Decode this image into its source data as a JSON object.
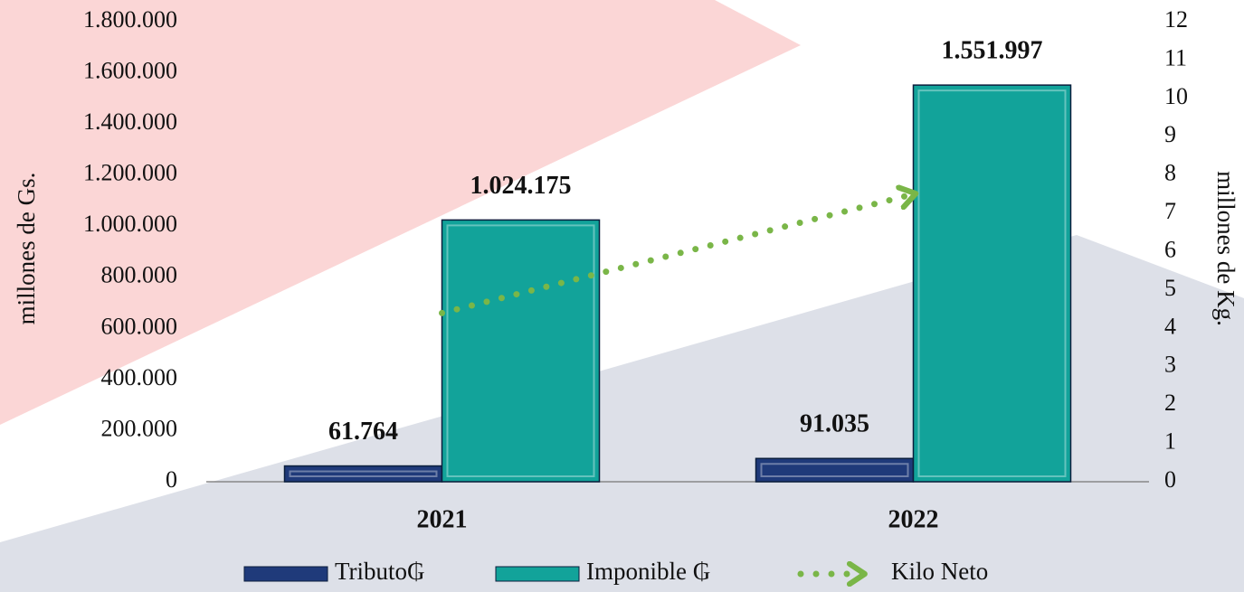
{
  "chart_data": {
    "type": "bar",
    "categories": [
      "2021",
      "2022"
    ],
    "y_label": "millones de Gs.",
    "y2_label": "millones de Kg.",
    "ylim": [
      0,
      1800000
    ],
    "yticks": [
      {
        "value": 0,
        "label": "0"
      },
      {
        "value": 200000,
        "label": "200.000"
      },
      {
        "value": 400000,
        "label": "400.000"
      },
      {
        "value": 600000,
        "label": "600.000"
      },
      {
        "value": 800000,
        "label": "800.000"
      },
      {
        "value": 1000000,
        "label": "1.000.000"
      },
      {
        "value": 1200000,
        "label": "1.200.000"
      },
      {
        "value": 1400000,
        "label": "1.400.000"
      },
      {
        "value": 1600000,
        "label": "1.600.000"
      },
      {
        "value": 1800000,
        "label": "1.800.000"
      }
    ],
    "y2lim": [
      0,
      12
    ],
    "y2ticks": [
      0,
      1,
      2,
      3,
      4,
      5,
      6,
      7,
      8,
      9,
      10,
      11,
      12
    ],
    "legend": "bottom",
    "series": [
      {
        "name": "Tributo₲",
        "color": "#1f3a7a",
        "values": [
          61764,
          91035
        ],
        "value_labels": [
          "61.764",
          "91.035"
        ]
      },
      {
        "name": "Imponible ₲",
        "color": "#12a39a",
        "values": [
          1024175,
          1551997
        ],
        "value_labels": [
          "1.024.175",
          "1.551.997"
        ]
      },
      {
        "name": "Kilo Neto",
        "type": "line",
        "axis": "y2",
        "color": "#7ab648",
        "values": [
          4.4,
          7.5
        ]
      }
    ]
  }
}
